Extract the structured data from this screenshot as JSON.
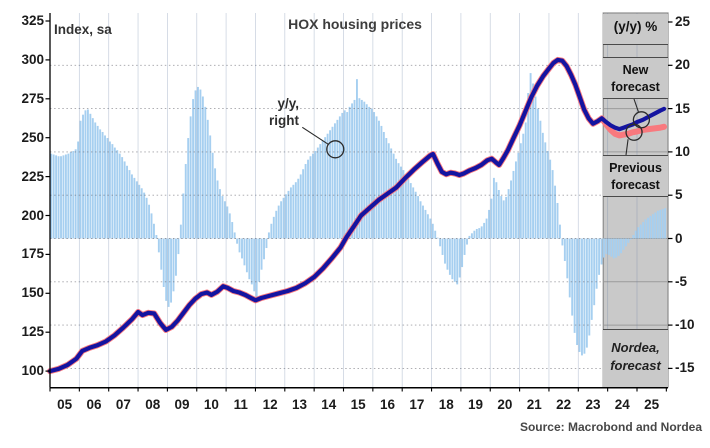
{
  "meta": {
    "title": "HOX housing prices",
    "left_axis_label": "Index, sa",
    "right_axis_label": "(y/y) %",
    "source": "Source: Macrobond and Nordea"
  },
  "annotations": {
    "yy_right": {
      "line1": "y/y,",
      "line2": "right"
    },
    "new_forecast": {
      "line1": "New",
      "line2": "forecast"
    },
    "previous_forecast": {
      "line1": "Previous",
      "line2": "forecast"
    },
    "nordea_forecast": {
      "line1": "Nordea,",
      "line2": "forecast"
    }
  },
  "axes": {
    "left_ticks": [
      325,
      300,
      275,
      250,
      225,
      200,
      175,
      150,
      125,
      100
    ],
    "right_ticks": [
      25,
      20,
      15,
      10,
      5,
      0,
      -5,
      -10,
      -15
    ],
    "x_labels": [
      "05",
      "06",
      "07",
      "08",
      "09",
      "10",
      "11",
      "12",
      "13",
      "14",
      "15",
      "16",
      "17",
      "18",
      "19",
      "20",
      "21",
      "22",
      "23",
      "24",
      "25"
    ]
  },
  "chart_data": {
    "type": "combo bar+line",
    "title": "HOX housing prices",
    "left_axis": {
      "label": "Index, sa",
      "ticks": [
        100,
        125,
        150,
        175,
        200,
        225,
        250,
        275,
        300,
        325
      ],
      "maps_to": "index lines"
    },
    "right_axis": {
      "label": "(y/y) %",
      "ticks": [
        -15,
        -10,
        -5,
        0,
        5,
        10,
        15,
        20,
        25
      ],
      "maps_to": "bars"
    },
    "x_range": [
      2005.0,
      2026.06
    ],
    "forecast_start": 2023.85,
    "colors": {
      "bars": "#a6cff0",
      "index_line_new": "#1414a0",
      "index_line_previous": "#f8797e",
      "forecast_band": "#c9c9c9",
      "forecast_band_border": "#8c8c8c",
      "gridline": "#8a8a8a"
    },
    "bars_yy_pct": {
      "name": "y/y % change (right axis)",
      "start_year": 2005.0,
      "step_years": 0.083333,
      "values": [
        9.8,
        9.7,
        9.6,
        9.5,
        9.5,
        9.6,
        9.7,
        9.8,
        10.0,
        10.1,
        10.3,
        11.2,
        13.6,
        14.3,
        14.8,
        14.9,
        14.4,
        13.9,
        13.4,
        13.0,
        12.6,
        12.3,
        11.9,
        11.6,
        11.2,
        10.9,
        10.5,
        10.2,
        9.8,
        9.4,
        8.9,
        8.4,
        7.9,
        7.4,
        7.0,
        6.6,
        6.2,
        5.8,
        5.3,
        4.7,
        3.9,
        2.9,
        1.7,
        0.4,
        -1.6,
        -3.6,
        -5.6,
        -7.2,
        -7.9,
        -7.4,
        -6.1,
        -4.3,
        -1.8,
        1.6,
        5.2,
        8.6,
        11.6,
        14.1,
        16.1,
        17.1,
        17.5,
        17.2,
        16.4,
        15.2,
        13.7,
        11.9,
        9.9,
        8.1,
        6.7,
        5.7,
        4.9,
        4.3,
        3.7,
        2.9,
        1.9,
        0.7,
        -0.6,
        -1.6,
        -2.3,
        -3.1,
        -3.9,
        -4.7,
        -5.3,
        -6.1,
        -6.9,
        -5.0,
        -3.6,
        -2.4,
        -1.1,
        0.7,
        1.7,
        2.5,
        3.2,
        3.8,
        4.3,
        4.7,
        5.1,
        5.5,
        5.9,
        6.2,
        6.5,
        6.9,
        7.4,
        8.0,
        8.6,
        9.1,
        9.5,
        9.8,
        10.1,
        10.5,
        10.9,
        11.3,
        11.7,
        12.1,
        12.5,
        12.9,
        13.3,
        13.7,
        14.1,
        14.5,
        14.8,
        14.6,
        15.2,
        15.6,
        16.0,
        18.4,
        16.2,
        16.0,
        15.8,
        15.5,
        15.2,
        15.0,
        14.6,
        14.1,
        13.6,
        13.0,
        12.3,
        11.6,
        11.0,
        10.4,
        9.8,
        9.2,
        8.7,
        8.3,
        7.9,
        7.4,
        6.9,
        6.4,
        5.9,
        5.4,
        4.9,
        4.3,
        3.8,
        3.3,
        2.8,
        2.3,
        1.7,
        0.9,
        0.1,
        -0.9,
        -1.9,
        -2.9,
        -3.6,
        -4.2,
        -4.7,
        -5.0,
        -5.3,
        -4.5,
        -3.3,
        -1.9,
        -0.7,
        0.3,
        0.6,
        0.9,
        1.1,
        1.2,
        1.4,
        1.8,
        2.3,
        3.3,
        4.6,
        7.0,
        6.5,
        5.6,
        4.9,
        4.4,
        4.8,
        5.7,
        6.7,
        7.8,
        8.9,
        9.9,
        11.0,
        12.1,
        13.4,
        16.8,
        19.1,
        17.9,
        16.4,
        15.0,
        13.6,
        12.2,
        11.1,
        10.1,
        9.1,
        7.9,
        6.1,
        4.1,
        1.6,
        -0.8,
        -2.6,
        -4.6,
        -6.8,
        -8.9,
        -10.9,
        -12.3,
        -13.1,
        -13.5,
        -13.3,
        -12.6,
        -11.2,
        -9.4,
        -7.7,
        -5.8,
        -4.2,
        -3.0,
        -2.2,
        -1.8,
        -1.9,
        -2.1,
        -2.3,
        -2.2,
        -2.0,
        -1.7,
        -1.3,
        -0.9,
        -0.5,
        -0.1,
        0.4,
        0.9,
        1.3,
        1.6,
        1.9,
        2.2,
        2.4,
        2.6,
        2.8,
        3.0,
        3.2,
        3.3,
        3.4,
        3.5
      ]
    },
    "index_line": {
      "name": "HOX index, sa (left axis, incl. new forecast)",
      "history_points": [
        [
          2005.0,
          100
        ],
        [
          2005.3,
          101.5
        ],
        [
          2005.6,
          104
        ],
        [
          2005.9,
          108
        ],
        [
          2006.1,
          113
        ],
        [
          2006.35,
          115
        ],
        [
          2006.6,
          116.5
        ],
        [
          2006.9,
          119
        ],
        [
          2007.2,
          123
        ],
        [
          2007.5,
          128
        ],
        [
          2007.8,
          133.5
        ],
        [
          2008.0,
          138
        ],
        [
          2008.15,
          136
        ],
        [
          2008.35,
          137.5
        ],
        [
          2008.55,
          137
        ],
        [
          2008.75,
          131
        ],
        [
          2008.95,
          126.5
        ],
        [
          2009.15,
          128.5
        ],
        [
          2009.35,
          132.5
        ],
        [
          2009.55,
          137.5
        ],
        [
          2009.75,
          142.5
        ],
        [
          2009.95,
          146.5
        ],
        [
          2010.15,
          149.5
        ],
        [
          2010.35,
          150.5
        ],
        [
          2010.5,
          149
        ],
        [
          2010.7,
          151
        ],
        [
          2010.9,
          154.5
        ],
        [
          2011.05,
          153.5
        ],
        [
          2011.25,
          151.5
        ],
        [
          2011.45,
          150.5
        ],
        [
          2011.65,
          149
        ],
        [
          2011.85,
          147
        ],
        [
          2012.0,
          145.5
        ],
        [
          2012.2,
          147
        ],
        [
          2012.5,
          148.5
        ],
        [
          2012.8,
          150
        ],
        [
          2013.1,
          151.5
        ],
        [
          2013.4,
          153.5
        ],
        [
          2013.7,
          156.5
        ],
        [
          2014.0,
          160.5
        ],
        [
          2014.3,
          166
        ],
        [
          2014.6,
          172.5
        ],
        [
          2014.9,
          179.5
        ],
        [
          2015.1,
          186
        ],
        [
          2015.35,
          193
        ],
        [
          2015.6,
          200
        ],
        [
          2015.9,
          205
        ],
        [
          2016.2,
          210
        ],
        [
          2016.5,
          214
        ],
        [
          2016.8,
          218
        ],
        [
          2017.1,
          224
        ],
        [
          2017.4,
          229.5
        ],
        [
          2017.7,
          234.5
        ],
        [
          2017.95,
          238.5
        ],
        [
          2018.05,
          239.5
        ],
        [
          2018.2,
          233.5
        ],
        [
          2018.35,
          228
        ],
        [
          2018.5,
          226.5
        ],
        [
          2018.65,
          227.5
        ],
        [
          2018.8,
          227
        ],
        [
          2018.95,
          226
        ],
        [
          2019.1,
          227
        ],
        [
          2019.3,
          229
        ],
        [
          2019.5,
          230.5
        ],
        [
          2019.7,
          232.5
        ],
        [
          2019.9,
          235.5
        ],
        [
          2020.05,
          236.5
        ],
        [
          2020.2,
          234
        ],
        [
          2020.3,
          232.5
        ],
        [
          2020.45,
          237
        ],
        [
          2020.6,
          242
        ],
        [
          2020.8,
          250
        ],
        [
          2021.0,
          258
        ],
        [
          2021.2,
          267
        ],
        [
          2021.4,
          276
        ],
        [
          2021.6,
          283.5
        ],
        [
          2021.8,
          289.5
        ],
        [
          2022.0,
          294.5
        ],
        [
          2022.15,
          298
        ],
        [
          2022.3,
          300
        ],
        [
          2022.45,
          299.5
        ],
        [
          2022.6,
          296
        ],
        [
          2022.75,
          290.5
        ],
        [
          2022.9,
          284
        ],
        [
          2023.05,
          276
        ],
        [
          2023.2,
          268
        ],
        [
          2023.35,
          262.5
        ],
        [
          2023.5,
          259
        ],
        [
          2023.65,
          260.5
        ],
        [
          2023.8,
          262.5
        ]
      ],
      "forecast_points": [
        [
          2023.95,
          260
        ],
        [
          2024.1,
          258
        ],
        [
          2024.25,
          256.5
        ],
        [
          2024.4,
          255.5
        ],
        [
          2024.55,
          256.5
        ],
        [
          2024.7,
          257.5
        ],
        [
          2024.85,
          258.5
        ],
        [
          2025.0,
          260
        ],
        [
          2025.2,
          261.5
        ],
        [
          2025.4,
          263.5
        ],
        [
          2025.6,
          265.5
        ],
        [
          2025.8,
          267.5
        ],
        [
          2025.92,
          268.5
        ]
      ]
    },
    "previous_forecast_line": {
      "name": "Previous forecast (follows index line before 2023.8)",
      "forecast_points": [
        [
          2023.8,
          262.5
        ],
        [
          2023.95,
          258.5
        ],
        [
          2024.1,
          255
        ],
        [
          2024.25,
          252.5
        ],
        [
          2024.4,
          251.5
        ],
        [
          2024.55,
          252
        ],
        [
          2024.7,
          252.5
        ],
        [
          2024.85,
          253.5
        ],
        [
          2025.0,
          254
        ],
        [
          2025.2,
          255
        ],
        [
          2025.4,
          255.5
        ],
        [
          2025.6,
          256
        ],
        [
          2025.8,
          256.5
        ],
        [
          2025.92,
          257
        ]
      ]
    },
    "markers": {
      "yy_right_circle": {
        "year": 2014.72,
        "right_value": 10.3
      },
      "new_forecast_circle": {
        "year": 2025.15,
        "index_value": 261.5
      },
      "previous_forecast_circle": {
        "year": 2024.9,
        "index_value": 253.5
      }
    }
  }
}
